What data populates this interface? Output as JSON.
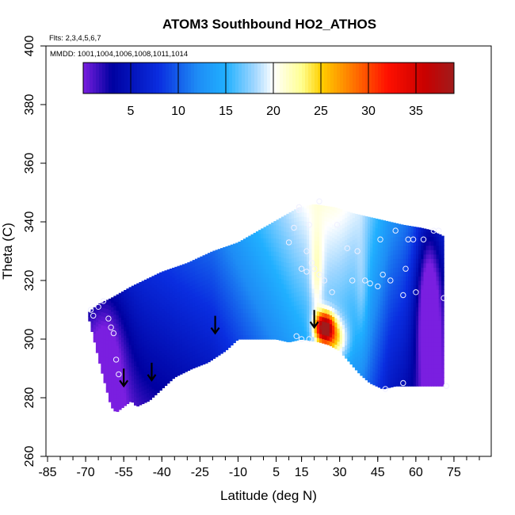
{
  "chart_data": {
    "type": "heatmap",
    "title": "ATOM3 Southbound HO2_ATHOS",
    "flights_label": "Flts: 2,3,4,5,6,7",
    "dates_label": "MMDD: 1001,1004,1006,1008,1011,1014",
    "xlabel": "Latitude (deg N)",
    "ylabel": "Theta (C)",
    "xlim": [
      -85,
      85
    ],
    "ylim": [
      260,
      400
    ],
    "x_ticks": [
      -85,
      -70,
      -55,
      -40,
      -25,
      -10,
      5,
      15,
      30,
      45,
      60,
      75
    ],
    "y_ticks": [
      260,
      280,
      300,
      320,
      340,
      360,
      380,
      400
    ],
    "colorbar": {
      "range": [
        0,
        39
      ],
      "ticks": [
        5,
        10,
        15,
        20,
        25,
        30,
        35
      ],
      "stops": [
        {
          "value": 0,
          "color": "#7a1fe0"
        },
        {
          "value": 3,
          "color": "#0000a0"
        },
        {
          "value": 8,
          "color": "#0a2ee0"
        },
        {
          "value": 12,
          "color": "#1e8cf5"
        },
        {
          "value": 15,
          "color": "#20b0ff"
        },
        {
          "value": 18,
          "color": "#9fd6ff"
        },
        {
          "value": 20,
          "color": "#ffffff"
        },
        {
          "value": 23,
          "color": "#ffff90"
        },
        {
          "value": 25,
          "color": "#ffd000"
        },
        {
          "value": 28,
          "color": "#ff8000"
        },
        {
          "value": 32,
          "color": "#ff1000"
        },
        {
          "value": 36,
          "color": "#c80000"
        },
        {
          "value": 39,
          "color": "#a01c1c"
        }
      ]
    },
    "surface_top": [
      {
        "lat": -69,
        "theta": 309
      },
      {
        "lat": -65,
        "theta": 312
      },
      {
        "lat": -60,
        "theta": 314
      },
      {
        "lat": -52,
        "theta": 318
      },
      {
        "lat": -40,
        "theta": 323
      },
      {
        "lat": -30,
        "theta": 326
      },
      {
        "lat": -20,
        "theta": 330
      },
      {
        "lat": -10,
        "theta": 333
      },
      {
        "lat": 0,
        "theta": 338
      },
      {
        "lat": 8,
        "theta": 342
      },
      {
        "lat": 14,
        "theta": 345
      },
      {
        "lat": 20,
        "theta": 346
      },
      {
        "lat": 28,
        "theta": 345
      },
      {
        "lat": 35,
        "theta": 343
      },
      {
        "lat": 45,
        "theta": 341
      },
      {
        "lat": 55,
        "theta": 339
      },
      {
        "lat": 62,
        "theta": 338
      },
      {
        "lat": 67,
        "theta": 337
      },
      {
        "lat": 71,
        "theta": 335
      }
    ],
    "surface_bottom": [
      {
        "lat": -69,
        "theta": 308
      },
      {
        "lat": -64,
        "theta": 290
      },
      {
        "lat": -60,
        "theta": 277
      },
      {
        "lat": -58,
        "theta": 275
      },
      {
        "lat": -52,
        "theta": 279
      },
      {
        "lat": -50,
        "theta": 277
      },
      {
        "lat": -45,
        "theta": 279
      },
      {
        "lat": -40,
        "theta": 283
      },
      {
        "lat": -35,
        "theta": 287
      },
      {
        "lat": -28,
        "theta": 290
      },
      {
        "lat": -22,
        "theta": 292
      },
      {
        "lat": -15,
        "theta": 296
      },
      {
        "lat": -10,
        "theta": 300
      },
      {
        "lat": 0,
        "theta": 300
      },
      {
        "lat": 5,
        "theta": 300
      },
      {
        "lat": 10,
        "theta": 299
      },
      {
        "lat": 15,
        "theta": 300
      },
      {
        "lat": 22,
        "theta": 299
      },
      {
        "lat": 26,
        "theta": 298
      },
      {
        "lat": 30,
        "theta": 296
      },
      {
        "lat": 34,
        "theta": 292
      },
      {
        "lat": 38,
        "theta": 288
      },
      {
        "lat": 42,
        "theta": 285
      },
      {
        "lat": 47,
        "theta": 283
      },
      {
        "lat": 52,
        "theta": 284
      },
      {
        "lat": 60,
        "theta": 284
      },
      {
        "lat": 71,
        "theta": 284
      }
    ],
    "color_blobs": [
      {
        "lat": 24,
        "theta": 304,
        "rlat": 3.5,
        "rtheta": 5,
        "amp": 24
      },
      {
        "lat": 28,
        "theta": 300,
        "rlat": 5,
        "rtheta": 7,
        "amp": 9
      },
      {
        "lat": 21,
        "theta": 321,
        "rlat": 2.5,
        "rtheta": 16,
        "amp": 4
      },
      {
        "lat": 39,
        "theta": 316,
        "rlat": 2.5,
        "rtheta": 18,
        "amp": 2
      },
      {
        "lat": 65,
        "theta": 312,
        "rlat": 5,
        "rtheta": 30,
        "amp": -9
      },
      {
        "lat": -62,
        "theta": 292,
        "rlat": 8,
        "rtheta": 25,
        "amp": -5
      }
    ],
    "arrows": [
      {
        "lat": -55,
        "theta": 284
      },
      {
        "lat": -44,
        "theta": 286
      },
      {
        "lat": -19,
        "theta": 302
      },
      {
        "lat": 20,
        "theta": 304
      }
    ],
    "observation_points": [
      {
        "lat": -68,
        "theta": 310
      },
      {
        "lat": -65,
        "theta": 311
      },
      {
        "lat": -63,
        "theta": 313
      },
      {
        "lat": -67,
        "theta": 308
      },
      {
        "lat": -61,
        "theta": 307
      },
      {
        "lat": -60,
        "theta": 304
      },
      {
        "lat": -59,
        "theta": 302
      },
      {
        "lat": -58,
        "theta": 293
      },
      {
        "lat": -57,
        "theta": 288
      },
      {
        "lat": 10,
        "theta": 333
      },
      {
        "lat": 12,
        "theta": 338
      },
      {
        "lat": 14,
        "theta": 344
      },
      {
        "lat": 18,
        "theta": 339
      },
      {
        "lat": 17,
        "theta": 330
      },
      {
        "lat": 19,
        "theta": 326
      },
      {
        "lat": 20,
        "theta": 324
      },
      {
        "lat": 15,
        "theta": 324
      },
      {
        "lat": 17,
        "theta": 323
      },
      {
        "lat": 22,
        "theta": 322
      },
      {
        "lat": 13,
        "theta": 301
      },
      {
        "lat": 15,
        "theta": 300
      },
      {
        "lat": 18,
        "theta": 300
      },
      {
        "lat": 24,
        "theta": 320
      },
      {
        "lat": 27,
        "theta": 316
      },
      {
        "lat": 29,
        "theta": 339
      },
      {
        "lat": 33,
        "theta": 331
      },
      {
        "lat": 35,
        "theta": 320
      },
      {
        "lat": 37,
        "theta": 330
      },
      {
        "lat": 40,
        "theta": 320
      },
      {
        "lat": 42,
        "theta": 319
      },
      {
        "lat": 45,
        "theta": 318
      },
      {
        "lat": 47,
        "theta": 322
      },
      {
        "lat": 50,
        "theta": 320
      },
      {
        "lat": 52,
        "theta": 337
      },
      {
        "lat": 46,
        "theta": 334
      },
      {
        "lat": 57,
        "theta": 334
      },
      {
        "lat": 59,
        "theta": 334
      },
      {
        "lat": 63,
        "theta": 334
      },
      {
        "lat": 67,
        "theta": 337
      },
      {
        "lat": 69,
        "theta": 337
      },
      {
        "lat": 56,
        "theta": 324
      },
      {
        "lat": 55,
        "theta": 315
      },
      {
        "lat": 60,
        "theta": 316
      },
      {
        "lat": 71,
        "theta": 314
      },
      {
        "lat": 48,
        "theta": 283
      },
      {
        "lat": 55,
        "theta": 285
      },
      {
        "lat": 72,
        "theta": 284
      },
      {
        "lat": 22,
        "theta": 347
      },
      {
        "lat": 14,
        "theta": 345
      }
    ]
  }
}
